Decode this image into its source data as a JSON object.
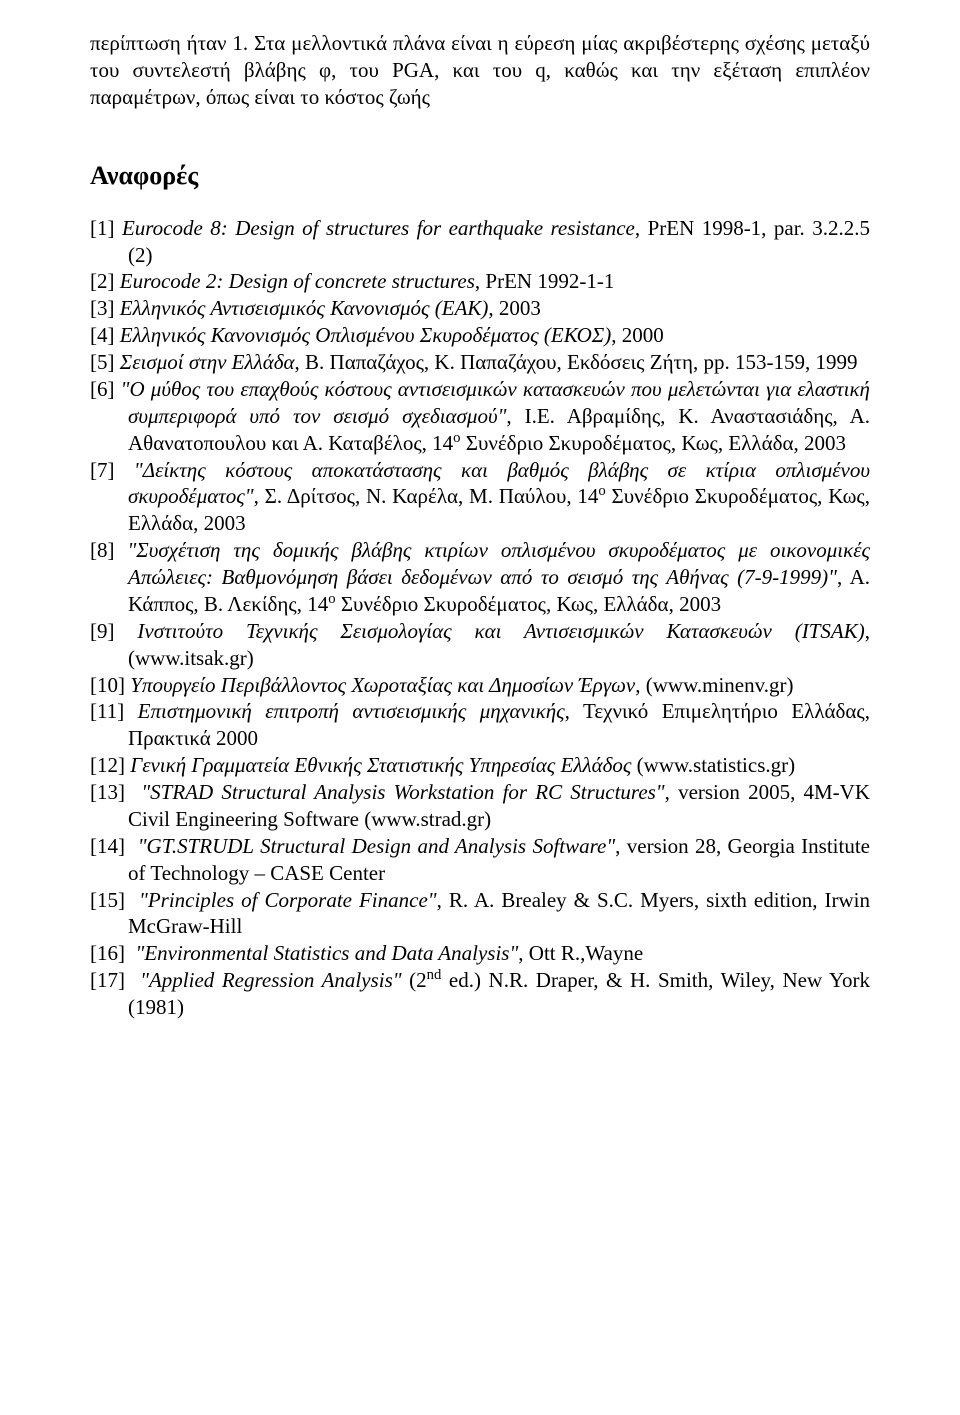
{
  "intro_text": "περίπτωση ήταν 1. Στα μελλοντικά πλάνα είναι η εύρεση μίας ακριβέστερης σχέσης μεταξύ του συντελεστή βλάβης φ, του PGA, και του q, καθώς και την εξέταση επιπλέον παραμέτρων, όπως είναι το κόστος ζωής",
  "references_heading": "Αναφορές",
  "refs": [
    {
      "num": "[1]",
      "parts": [
        {
          "t": "Eurocode 8: Design of structures for earthquake resistance",
          "i": true
        },
        {
          "t": ", PrEN 1998-1, par. 3.2.2.5 (2)"
        }
      ]
    },
    {
      "num": "[2]",
      "parts": [
        {
          "t": "Eurocode 2: Design of concrete structures",
          "i": true
        },
        {
          "t": ", PrEN 1992-1-1"
        }
      ]
    },
    {
      "num": "[3]",
      "parts": [
        {
          "t": "Ελληνικός Αντισεισμικός Κανονισμός (ΕΑΚ)",
          "i": true
        },
        {
          "t": ", 2003"
        }
      ]
    },
    {
      "num": "[4]",
      "parts": [
        {
          "t": "Ελληνικός Κανονισμός Οπλισμένου Σκυροδέματος (ΕΚΟΣ)",
          "i": true
        },
        {
          "t": ", 2000"
        }
      ]
    },
    {
      "num": "[5]",
      "parts": [
        {
          "t": "Σεισμοί στην Ελλάδα",
          "i": true
        },
        {
          "t": ", Β. Παπαζάχος, Κ. Παπαζάχου, Εκδόσεις Ζήτη, pp. 153-159, 1999"
        }
      ]
    },
    {
      "num": "[6]",
      "parts": [
        {
          "t": "\"Ο μύθος του επαχθούς κόστους αντισεισμικών κατασκευών που μελετώνται για ελαστική συμπεριφορά υπό τον σεισμό σχεδιασμού\"",
          "i": true
        },
        {
          "t": ", Ι.Ε. Αβραμίδης, Κ. Αναστασιάδης, Α. Αθανατοπουλου και Α. Καταβέλος, 14"
        },
        {
          "t": "ο",
          "sup": true
        },
        {
          "t": " Συνέδριο Σκυροδέματος, Κως, Ελλάδα, 2003"
        }
      ]
    },
    {
      "num": "[7]",
      "parts": [
        {
          "t": "\"Δείκτης κόστους αποκατάστασης και βαθμός βλάβης σε κτίρια οπλισμένου σκυροδέματος\"",
          "i": true
        },
        {
          "t": ", Σ. Δρίτσος, Ν. Καρέλα, Μ. Παύλου, 14"
        },
        {
          "t": "ο",
          "sup": true
        },
        {
          "t": " Συνέδριο Σκυροδέματος, Κως, Ελλάδα, 2003"
        }
      ]
    },
    {
      "num": "[8]",
      "parts": [
        {
          "t": "\"Συσχέτιση της δομικής βλάβης κτιρίων οπλισμένου σκυροδέματος με οικονομικές Απώλειες: Βαθμονόμηση βάσει δεδομένων από το σεισμό της Αθήνας (7-9-1999)\"",
          "i": true
        },
        {
          "t": ", Α. Κάππος, Β. Λεκίδης, 14"
        },
        {
          "t": "ο",
          "sup": true
        },
        {
          "t": " Συνέδριο Σκυροδέματος, Κως, Ελλάδα, 2003"
        }
      ]
    },
    {
      "num": "[9]",
      "parts": [
        {
          "t": "Ινστιτούτο Τεχνικής Σεισμολογίας και Αντισεισμικών Κατασκευών (ΙΤSΑΚ)",
          "i": true
        },
        {
          "t": ", (www.itsak.gr)"
        }
      ]
    },
    {
      "num": "[10]",
      "parts": [
        {
          "t": "Υπουργείο Περιβάλλοντος Χωροταξίας και Δημοσίων Έργων",
          "i": true
        },
        {
          "t": ", (www.minenv.gr)"
        }
      ]
    },
    {
      "num": "[11]",
      "parts": [
        {
          "t": "Επιστημονική επιτροπή αντισεισμικής μηχανικής",
          "i": true
        },
        {
          "t": ", Τεχνικό Επιμελητήριο Ελλάδας, Πρακτικά 2000"
        }
      ]
    },
    {
      "num": "[12]",
      "parts": [
        {
          "t": "Γενική Γραμματεία Εθνικής Στατιστικής Υπηρεσίας Ελλάδος",
          "i": true
        },
        {
          "t": " (www.statistics.gr)"
        }
      ]
    },
    {
      "num": "[13]",
      "parts": [
        {
          "t": " \"STRAD Structural Analysis Workstation for RC Structures\"",
          "i": true
        },
        {
          "t": ", version 2005, 4M-VK Civil Engineering Software (www.strad.gr)"
        }
      ]
    },
    {
      "num": "[14]",
      "parts": [
        {
          "t": " \"GT.STRUDL Structural Design and Analysis Software\"",
          "i": true
        },
        {
          "t": ", version 28, Georgia Institute of Technology – CASE Center"
        }
      ]
    },
    {
      "num": "[15]",
      "parts": [
        {
          "t": " \"Principles of Corporate Finance\"",
          "i": true
        },
        {
          "t": ", R. A. Brealey & S.C. Myers, sixth edition, Irwin McGraw-Hill"
        }
      ]
    },
    {
      "num": "[16]",
      "parts": [
        {
          "t": " \"Environmental Statistics and Data Analysis\"",
          "i": true
        },
        {
          "t": ", Ott R.,Wayne"
        }
      ]
    },
    {
      "num": "[17]",
      "parts": [
        {
          "t": " \"Applied Regression Analysis\"",
          "i": true
        },
        {
          "t": " (2"
        },
        {
          "t": "nd",
          "sup": true
        },
        {
          "t": " ed.)  N.R. Draper, & H. Smith, Wiley, New York (1981)"
        }
      ]
    }
  ]
}
